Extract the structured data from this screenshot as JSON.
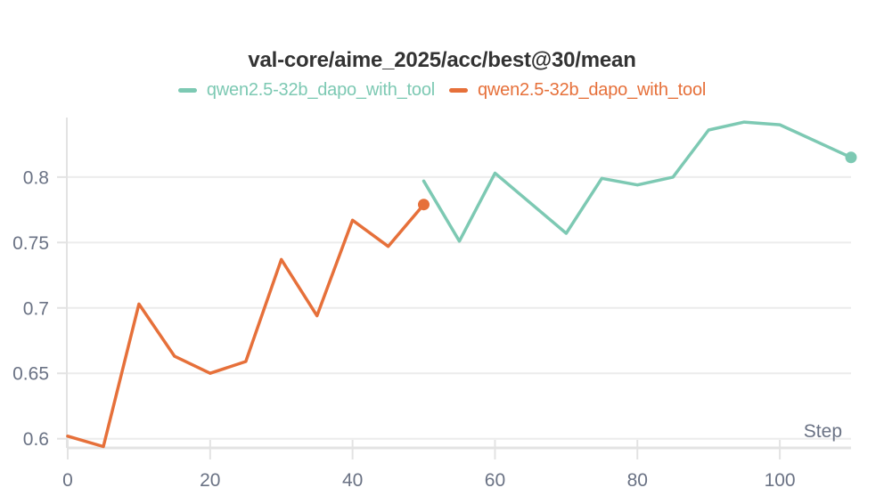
{
  "header": {
    "title": "val-core/aime_2025/acc/best@30/mean"
  },
  "legend": {
    "entries": [
      {
        "label": "qwen2.5-32b_dapo_with_tool",
        "color": "#7dc9b3"
      },
      {
        "label": "qwen2.5-32b_dapo_with_tool",
        "color": "#e6703a"
      }
    ]
  },
  "chart_data": {
    "type": "line",
    "title": "val-core/aime_2025/acc/best@30/mean",
    "xlabel": "Step",
    "ylabel": "",
    "xlim": [
      0,
      110
    ],
    "ylim": [
      0.593,
      0.8455
    ],
    "x_ticks": [
      0,
      20,
      40,
      60,
      80,
      100
    ],
    "y_ticks": [
      0.6,
      0.65,
      0.7,
      0.75,
      0.8
    ],
    "grid": "horizontal-only",
    "legend_position": "top-center",
    "series": [
      {
        "name": "qwen2.5-32b_dapo_with_tool",
        "color": "#7dc9b3",
        "x": [
          50,
          55,
          60,
          70,
          75,
          80,
          85,
          90,
          95,
          100,
          110
        ],
        "y": [
          0.797,
          0.751,
          0.803,
          0.757,
          0.799,
          0.794,
          0.8,
          0.836,
          0.842,
          0.84,
          0.815
        ],
        "end_marker": true
      },
      {
        "name": "qwen2.5-32b_dapo_with_tool",
        "color": "#e6703a",
        "x": [
          0,
          5,
          10,
          15,
          20,
          25,
          30,
          35,
          40,
          45,
          50
        ],
        "y": [
          0.602,
          0.594,
          0.703,
          0.663,
          0.65,
          0.659,
          0.737,
          0.694,
          0.767,
          0.747,
          0.779
        ],
        "end_marker": true
      }
    ]
  },
  "axes": {
    "x_axis_label": "Step"
  },
  "colors": {
    "background": "#ffffff",
    "title_text": "#333333",
    "axis_text": "#6a7284",
    "gridline": "#ececec",
    "axis_line": "#e3e3e3"
  }
}
